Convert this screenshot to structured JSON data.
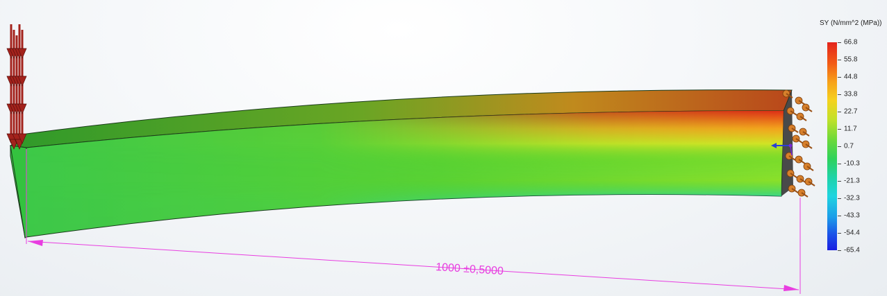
{
  "legend": {
    "title": "SY (N/mm^2 (MPa))",
    "values": [
      "66.8",
      "55.8",
      "44.8",
      "33.8",
      "22.7",
      "11.7",
      "0.7",
      "-10.3",
      "-21.3",
      "-32.3",
      "-43.3",
      "-54.4",
      "-65.4"
    ]
  },
  "dimension": {
    "label": "1000 ±0,5000"
  },
  "colors": {
    "dimension": "#e83de0",
    "load_arrow": "#a3221c",
    "fixture": "#d7802c",
    "max_stress": "#e3241c",
    "min_stress": "#1b1fe2"
  },
  "icons": {
    "load": "downward-force-arrows-icon",
    "fixture": "fixed-support-icon",
    "axis": "coordinate-triad-icon"
  }
}
